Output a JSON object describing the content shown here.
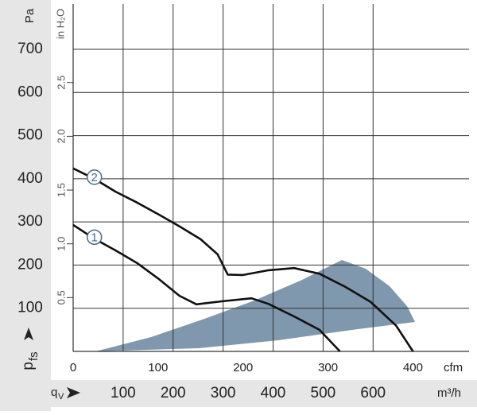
{
  "chart_data": {
    "type": "line",
    "y_label": "Pa",
    "y2_label": "in H₂O",
    "y_symbol": "p",
    "y_symbol_sub": "fs",
    "x_symbol": "q",
    "x_symbol_sub": "V",
    "x_label": "cfm",
    "x2_label": "m³/h",
    "xlim": [
      0,
      466
    ],
    "xticks": [
      0,
      100,
      200,
      300,
      400
    ],
    "x2lim": [
      0,
      792
    ],
    "x2ticks": [
      100,
      200,
      300,
      400,
      500,
      600
    ],
    "ylim": [
      0,
      805
    ],
    "yticks": [
      100,
      200,
      300,
      400,
      500,
      600,
      700
    ],
    "y2lim": [
      0,
      3.23
    ],
    "y2ticks": [
      0.5,
      {
        "value": 1,
        "label": "1.0"
      },
      1.5,
      {
        "value": 2,
        "label": "2.0"
      },
      2.5
    ],
    "grid": true,
    "series": [
      {
        "name": "2",
        "color": "#111111",
        "x": [
          0,
          25,
          50,
          75,
          100,
          125,
          150,
          170,
          182,
          200,
          230,
          260,
          290,
          320,
          350,
          380,
          400
        ],
        "values": [
          424,
          400,
          370,
          345,
          318,
          290,
          260,
          225,
          178,
          177,
          188,
          193,
          180,
          150,
          115,
          60,
          0
        ]
      },
      {
        "name": "1",
        "color": "#111111",
        "x": [
          0,
          25,
          50,
          75,
          100,
          125,
          145,
          175,
          210,
          230,
          260,
          290,
          314
        ],
        "values": [
          293,
          261,
          234,
          205,
          169,
          129,
          109,
          116,
          123,
          110,
          81,
          50,
          0
        ]
      }
    ]
  }
}
